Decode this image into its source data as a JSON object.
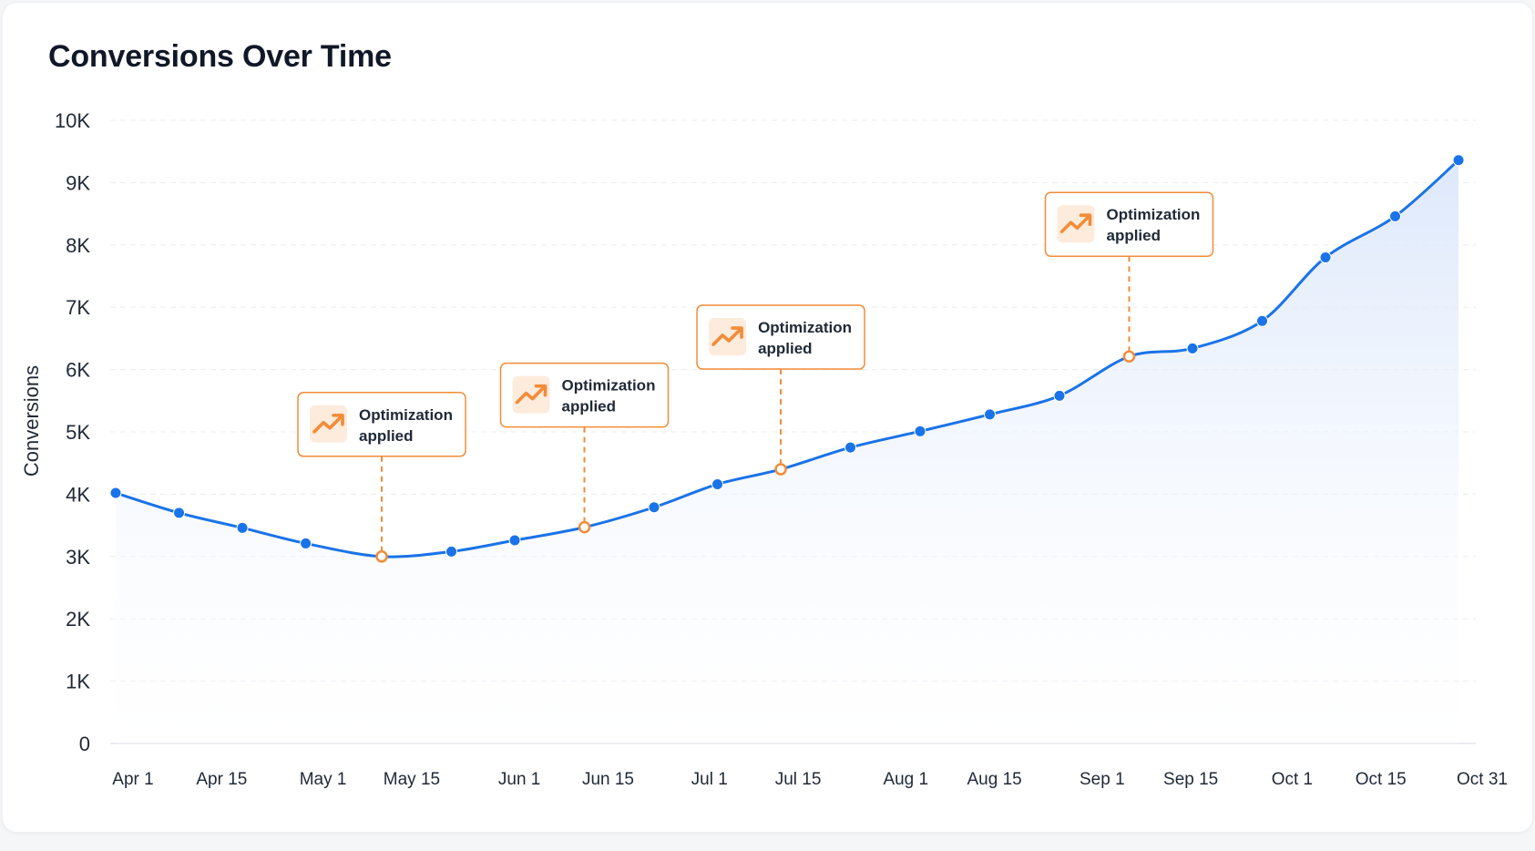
{
  "chart_data": {
    "type": "area",
    "title": "Conversions Over Time",
    "ylabel": "Conversions",
    "xlabel": "",
    "ylim": [
      0,
      10000
    ],
    "yticks": [
      {
        "value": 0,
        "label": "0"
      },
      {
        "value": 1000,
        "label": "1K"
      },
      {
        "value": 2000,
        "label": "2K"
      },
      {
        "value": 3000,
        "label": "3K"
      },
      {
        "value": 4000,
        "label": "4K"
      },
      {
        "value": 5000,
        "label": "5K"
      },
      {
        "value": 6000,
        "label": "6K"
      },
      {
        "value": 7000,
        "label": "7K"
      },
      {
        "value": 8000,
        "label": "8K"
      },
      {
        "value": 9000,
        "label": "9K"
      },
      {
        "value": 10000,
        "label": "10K"
      }
    ],
    "xlim": [
      "2024-04-01",
      "2024-10-31"
    ],
    "xticks": [
      {
        "date": "2024-04-01",
        "label": "Apr 1"
      },
      {
        "date": "2024-04-15",
        "label": "Apr 15"
      },
      {
        "date": "2024-05-01",
        "label": "May 1"
      },
      {
        "date": "2024-05-15",
        "label": "May 15"
      },
      {
        "date": "2024-06-01",
        "label": "Jun 1"
      },
      {
        "date": "2024-06-15",
        "label": "Jun 15"
      },
      {
        "date": "2024-07-01",
        "label": "Jul 1"
      },
      {
        "date": "2024-07-15",
        "label": "Jul 15"
      },
      {
        "date": "2024-08-01",
        "label": "Aug 1"
      },
      {
        "date": "2024-08-15",
        "label": "Aug 15"
      },
      {
        "date": "2024-09-01",
        "label": "Sep 1"
      },
      {
        "date": "2024-09-15",
        "label": "Sep 15"
      },
      {
        "date": "2024-10-01",
        "label": "Oct 1"
      },
      {
        "date": "2024-10-15",
        "label": "Oct 15"
      },
      {
        "date": "2024-10-31",
        "label": "Oct 31"
      }
    ],
    "grid": true,
    "series": [
      {
        "points": [
          {
            "x": "2024-04-01",
            "y": 4020
          },
          {
            "x": "2024-04-11",
            "y": 3700
          },
          {
            "x": "2024-04-21",
            "y": 3460
          },
          {
            "x": "2024-05-01",
            "y": 3210
          },
          {
            "x": "2024-05-13",
            "y": 3000,
            "annotated": true
          },
          {
            "x": "2024-05-24",
            "y": 3080
          },
          {
            "x": "2024-06-03",
            "y": 3260
          },
          {
            "x": "2024-06-14",
            "y": 3470,
            "annotated": true
          },
          {
            "x": "2024-06-25",
            "y": 3790
          },
          {
            "x": "2024-07-05",
            "y": 4160
          },
          {
            "x": "2024-07-15",
            "y": 4400,
            "annotated": true
          },
          {
            "x": "2024-07-26",
            "y": 4750
          },
          {
            "x": "2024-08-06",
            "y": 5010
          },
          {
            "x": "2024-08-17",
            "y": 5280
          },
          {
            "x": "2024-08-28",
            "y": 5580
          },
          {
            "x": "2024-09-08",
            "y": 6210,
            "annotated": true
          },
          {
            "x": "2024-09-18",
            "y": 6340
          },
          {
            "x": "2024-09-29",
            "y": 6780
          },
          {
            "x": "2024-10-09",
            "y": 7800
          },
          {
            "x": "2024-10-20",
            "y": 8460
          },
          {
            "x": "2024-10-30",
            "y": 9360
          }
        ]
      }
    ],
    "annotations": [
      {
        "x": "2024-05-13",
        "y": 3000,
        "text_lines": [
          "Optimization",
          "applied"
        ],
        "icon": "trending-up-icon"
      },
      {
        "x": "2024-06-14",
        "y": 3470,
        "text_lines": [
          "Optimization",
          "applied"
        ],
        "icon": "trending-up-icon"
      },
      {
        "x": "2024-07-15",
        "y": 4400,
        "text_lines": [
          "Optimization",
          "applied"
        ],
        "icon": "trending-up-icon"
      },
      {
        "x": "2024-09-08",
        "y": 6210,
        "text_lines": [
          "Optimization",
          "applied"
        ],
        "icon": "trending-up-icon"
      }
    ],
    "colors": {
      "line": "#1a73e8",
      "point": "#1a73e8",
      "area_top": "#dbe7fb",
      "annotation": "#f28c38",
      "annotation_icon_bg": "#fdebdc",
      "grid": "#e9ecf1",
      "axis": "#e3e6eb"
    }
  }
}
